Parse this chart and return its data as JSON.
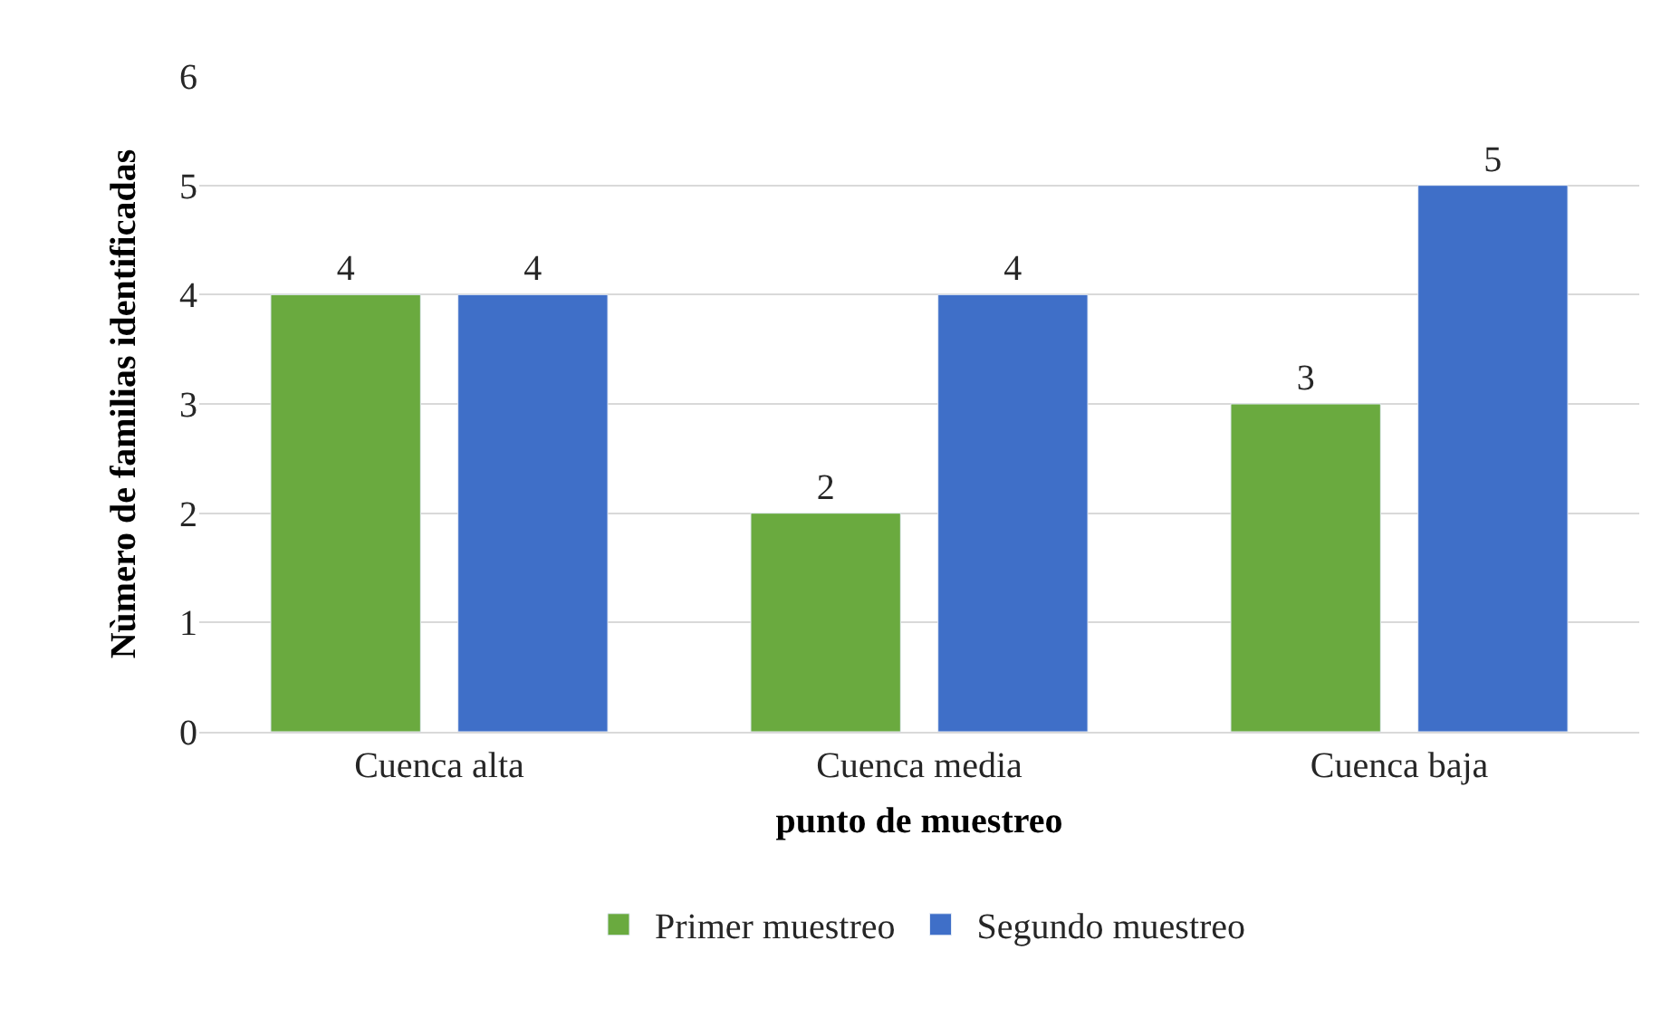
{
  "chart_data": {
    "type": "bar",
    "xlabel": "punto de muestreo",
    "ylabel": "Nùmero de familias identificadas",
    "categories": [
      "Cuenca alta",
      "Cuenca media",
      "Cuenca baja"
    ],
    "series": [
      {
        "name": "Primer muestreo",
        "color": "#6aaa3f",
        "values": [
          4,
          2,
          3
        ]
      },
      {
        "name": "Segundo muestreo",
        "color": "#3f6fc8",
        "values": [
          4,
          4,
          5
        ]
      }
    ],
    "ylim": [
      0,
      6
    ],
    "yticks": [
      0,
      1,
      2,
      3,
      4,
      5,
      6
    ],
    "grid": "y",
    "legend": "bottom",
    "data_labels": true
  }
}
